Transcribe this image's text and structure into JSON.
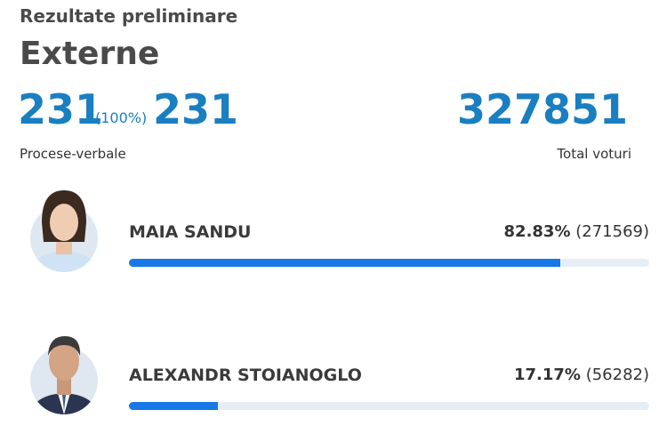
{
  "header": {
    "label": "Rezultate preliminare",
    "title": "Externe"
  },
  "stats": {
    "processed": 231,
    "processed_percent": "(100%)",
    "total_protocols": 231,
    "protocols_label": "Procese-verbale",
    "total_votes": 327851,
    "votes_label": "Total voturi"
  },
  "candidates": [
    {
      "name": "MAIA SANDU",
      "share": 82.83,
      "share_label": "82.83%",
      "votes_label": "(271569)"
    },
    {
      "name": "ALEXANDR STOIANOGLO",
      "share": 17.17,
      "share_label": "17.17%",
      "votes_label": "(56282)"
    }
  ]
}
